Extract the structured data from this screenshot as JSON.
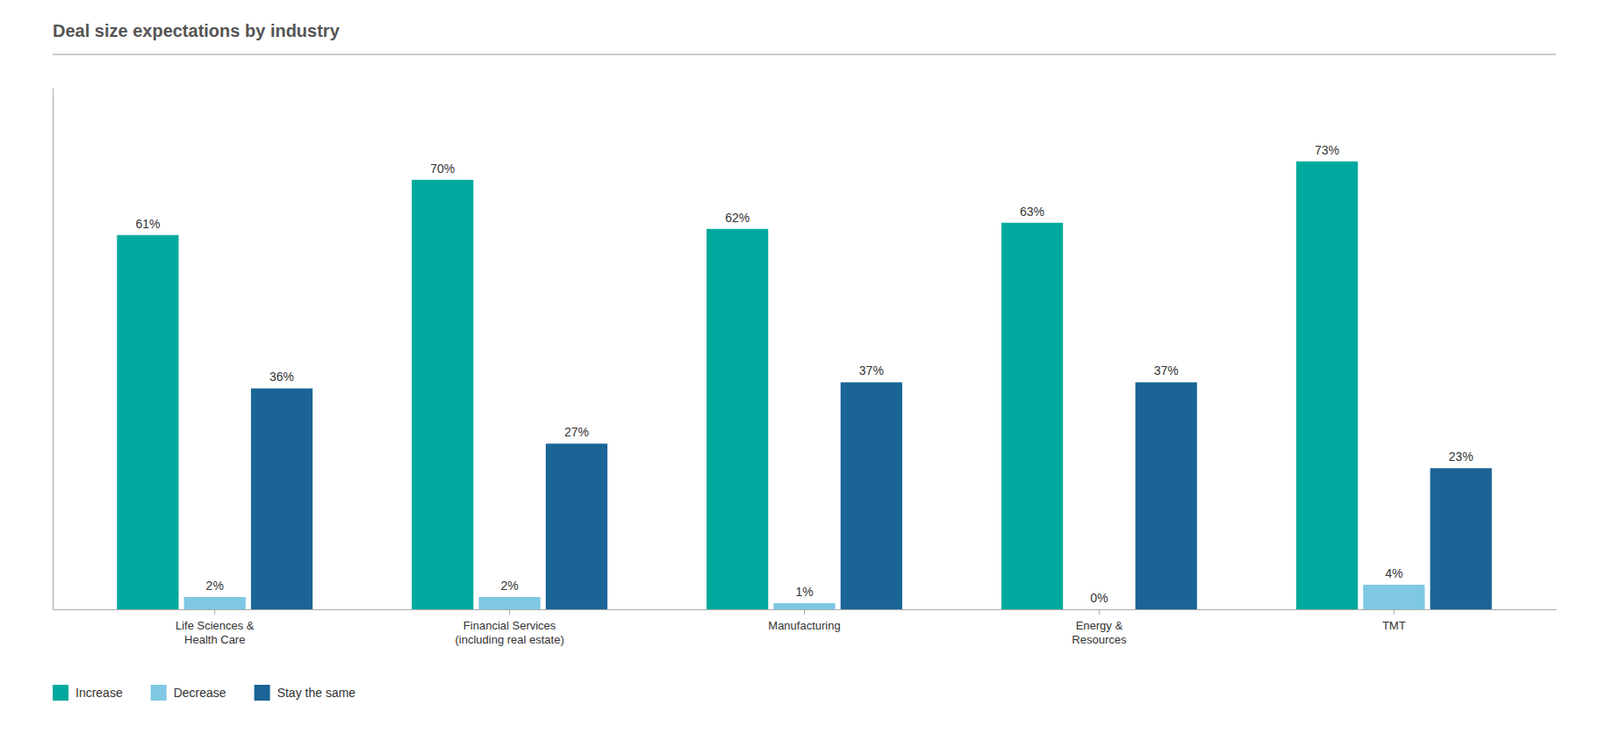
{
  "chart_data": {
    "type": "bar",
    "title": "Deal size expectations by industry",
    "categories": [
      "Life Sciences &\nHealth Care",
      "Financial Services\n(including real estate)",
      "Manufacturing",
      "Energy &\nResources",
      "TMT"
    ],
    "series": [
      {
        "name": "Increase",
        "color": "#00a99d",
        "values": [
          61,
          70,
          62,
          63,
          73
        ],
        "value_labels": [
          "61%",
          "70%",
          "62%",
          "63%",
          "73%"
        ]
      },
      {
        "name": "Decrease",
        "color": "#7ec8e3",
        "values": [
          2,
          2,
          1,
          0,
          4
        ],
        "value_labels": [
          "2%",
          "2%",
          "1%",
          "0%",
          "4%"
        ]
      },
      {
        "name": "Stay the same",
        "color": "#1a6496",
        "values": [
          36,
          27,
          37,
          37,
          23
        ],
        "value_labels": [
          "36%",
          "27%",
          "37%",
          "37%",
          "23%"
        ]
      }
    ],
    "ylim": [
      0,
      85
    ],
    "data_labels": true,
    "tick_labels": "x",
    "grid": false,
    "legend": "bottom"
  }
}
